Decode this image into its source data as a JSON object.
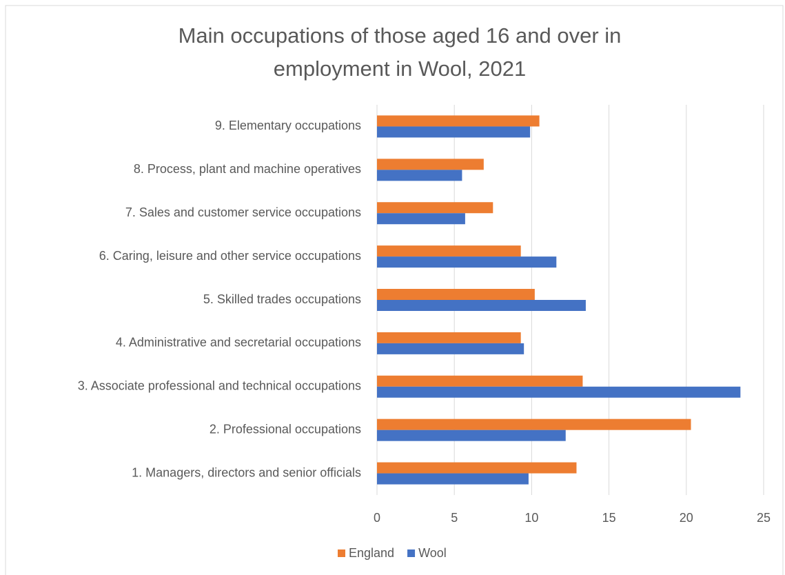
{
  "chart_data": {
    "type": "hbar",
    "title": "Main occupations of those aged 16 and over in employment in Wool, 2021",
    "categories": [
      "1. Managers, directors and senior officials",
      "2. Professional occupations",
      "3. Associate professional and technical occupations",
      "4. Administrative and secretarial occupations",
      "5. Skilled trades occupations",
      "6. Caring, leisure and other service occupations",
      "7. Sales and customer service occupations",
      "8. Process, plant and machine operatives",
      "9. Elementary occupations"
    ],
    "series": [
      {
        "name": "England",
        "color": "#ed7d31",
        "values": [
          12.9,
          20.3,
          13.3,
          9.3,
          10.2,
          9.3,
          7.5,
          6.9,
          10.5
        ]
      },
      {
        "name": "Wool",
        "color": "#4472c4",
        "values": [
          9.8,
          12.2,
          23.5,
          9.5,
          13.5,
          11.6,
          5.7,
          5.5,
          9.9
        ]
      }
    ],
    "xlim": [
      0,
      25
    ],
    "xticks": [
      0,
      5,
      10,
      15,
      20,
      25
    ],
    "grid": true,
    "legend": "bottom"
  }
}
